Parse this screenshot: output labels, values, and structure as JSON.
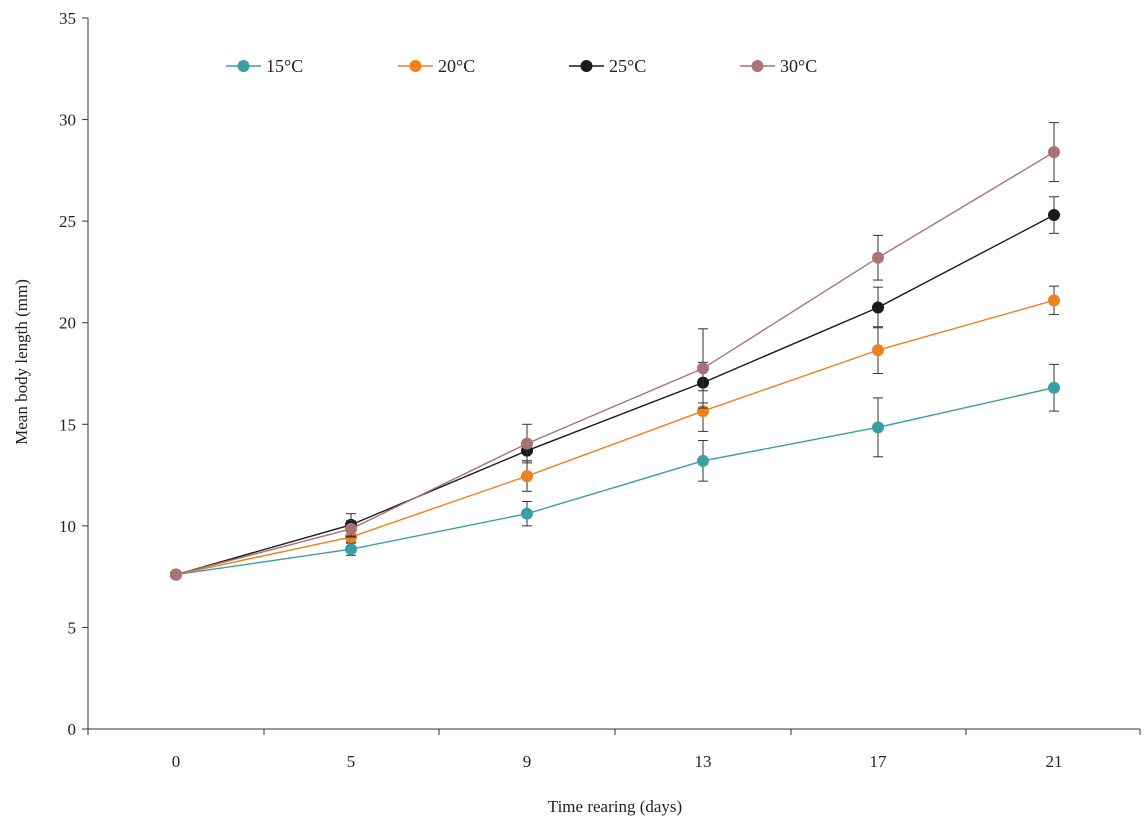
{
  "chart_data": {
    "type": "line",
    "title": "",
    "xlabel": "Time rearing (days)",
    "ylabel": "Mean body length (mm)",
    "x": [
      0,
      5,
      9,
      13,
      17,
      21
    ],
    "x_tick_labels": [
      "0",
      "5",
      "9",
      "13",
      "17",
      "21"
    ],
    "ylim": [
      0,
      35
    ],
    "y_ticks": [
      0,
      5,
      10,
      15,
      20,
      25,
      30,
      35
    ],
    "grid": false,
    "legend_position": "top",
    "series": [
      {
        "name": "15°C",
        "color": "#3a9ea5",
        "values": [
          7.6,
          8.85,
          10.6,
          13.2,
          14.85,
          16.8
        ],
        "errors": [
          0.15,
          0.3,
          0.6,
          1.0,
          1.45,
          1.15
        ]
      },
      {
        "name": "20°C",
        "color": "#f07f1e",
        "values": [
          7.6,
          9.45,
          12.45,
          15.65,
          18.65,
          21.1
        ],
        "errors": [
          0.15,
          0.25,
          0.75,
          1.0,
          1.15,
          0.7
        ]
      },
      {
        "name": "25°C",
        "color": "#1a1a1a",
        "values": [
          7.6,
          10.05,
          13.7,
          17.05,
          20.75,
          25.3
        ],
        "errors": [
          0.15,
          0.55,
          0.5,
          1.0,
          1.0,
          0.9
        ]
      },
      {
        "name": "30°C",
        "color": "#a87372",
        "values": [
          7.6,
          9.85,
          14.05,
          17.75,
          23.2,
          28.4
        ],
        "errors": [
          0.15,
          0.4,
          0.95,
          1.95,
          1.1,
          1.45
        ]
      }
    ]
  }
}
